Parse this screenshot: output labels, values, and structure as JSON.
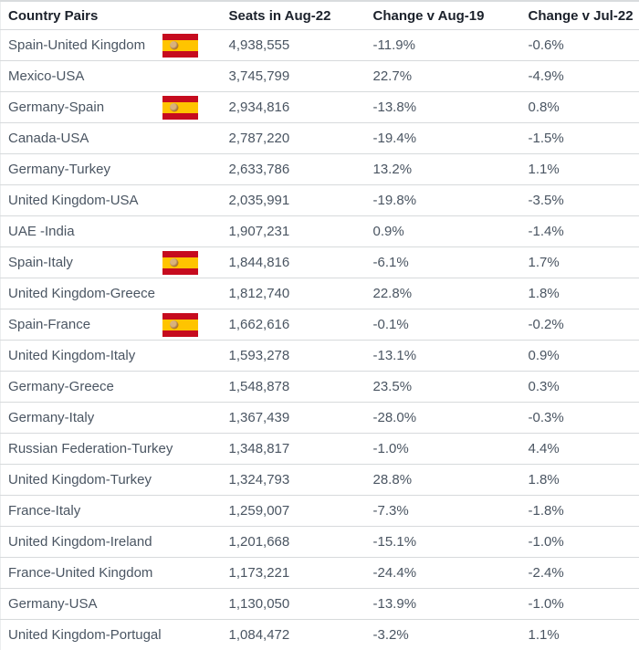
{
  "table": {
    "columns": [
      {
        "label": "Country Pairs"
      },
      {
        "label": "Seats in Aug-22"
      },
      {
        "label": "Change v Aug-19"
      },
      {
        "label": "Change v Jul-22"
      }
    ],
    "rows": [
      {
        "pair": "Spain-United Kingdom",
        "flag": "spain-flag",
        "seats": "4,938,555",
        "change_v_aug19": "-11.9%",
        "change_v_jul22": "-0.6%"
      },
      {
        "pair": "Mexico-USA",
        "flag": "",
        "seats": "3,745,799",
        "change_v_aug19": "22.7%",
        "change_v_jul22": "-4.9%"
      },
      {
        "pair": "Germany-Spain",
        "flag": "spain-flag",
        "seats": "2,934,816",
        "change_v_aug19": "-13.8%",
        "change_v_jul22": "0.8%"
      },
      {
        "pair": "Canada-USA",
        "flag": "",
        "seats": "2,787,220",
        "change_v_aug19": "-19.4%",
        "change_v_jul22": "-1.5%"
      },
      {
        "pair": "Germany-Turkey",
        "flag": "",
        "seats": "2,633,786",
        "change_v_aug19": "13.2%",
        "change_v_jul22": "1.1%"
      },
      {
        "pair": "United Kingdom-USA",
        "flag": "",
        "seats": "2,035,991",
        "change_v_aug19": "-19.8%",
        "change_v_jul22": "-3.5%"
      },
      {
        "pair": "UAE -India",
        "flag": "",
        "seats": "1,907,231",
        "change_v_aug19": "0.9%",
        "change_v_jul22": "-1.4%"
      },
      {
        "pair": "Spain-Italy",
        "flag": "spain-flag",
        "seats": "1,844,816",
        "change_v_aug19": "-6.1%",
        "change_v_jul22": "1.7%"
      },
      {
        "pair": "United Kingdom-Greece",
        "flag": "",
        "seats": "1,812,740",
        "change_v_aug19": "22.8%",
        "change_v_jul22": "1.8%"
      },
      {
        "pair": "Spain-France",
        "flag": "spain-flag",
        "seats": "1,662,616",
        "change_v_aug19": "-0.1%",
        "change_v_jul22": "-0.2%"
      },
      {
        "pair": "United Kingdom-Italy",
        "flag": "",
        "seats": "1,593,278",
        "change_v_aug19": "-13.1%",
        "change_v_jul22": "0.9%"
      },
      {
        "pair": "Germany-Greece",
        "flag": "",
        "seats": "1,548,878",
        "change_v_aug19": "23.5%",
        "change_v_jul22": "0.3%"
      },
      {
        "pair": "Germany-Italy",
        "flag": "",
        "seats": "1,367,439",
        "change_v_aug19": "-28.0%",
        "change_v_jul22": "-0.3%"
      },
      {
        "pair": "Russian Federation-Turkey",
        "flag": "",
        "seats": "1,348,817",
        "change_v_aug19": "-1.0%",
        "change_v_jul22": "4.4%"
      },
      {
        "pair": "United Kingdom-Turkey",
        "flag": "",
        "seats": "1,324,793",
        "change_v_aug19": "28.8%",
        "change_v_jul22": "1.8%"
      },
      {
        "pair": "France-Italy",
        "flag": "",
        "seats": "1,259,007",
        "change_v_aug19": "-7.3%",
        "change_v_jul22": "-1.8%"
      },
      {
        "pair": "United Kingdom-Ireland",
        "flag": "",
        "seats": "1,201,668",
        "change_v_aug19": "-15.1%",
        "change_v_jul22": "-1.0%"
      },
      {
        "pair": "France-United Kingdom",
        "flag": "",
        "seats": "1,173,221",
        "change_v_aug19": "-24.4%",
        "change_v_jul22": "-2.4%"
      },
      {
        "pair": "Germany-USA",
        "flag": "",
        "seats": "1,130,050",
        "change_v_aug19": "-13.9%",
        "change_v_jul22": "-1.0%"
      },
      {
        "pair": "United Kingdom-Portugal",
        "flag": "",
        "seats": "1,084,472",
        "change_v_aug19": "-3.2%",
        "change_v_jul22": "1.1%"
      }
    ]
  },
  "icons": {
    "spain_flag": "spain-flag-icon"
  },
  "colors": {
    "header_text": "#1b212b",
    "body_text": "#4a5562",
    "row_separator": "#d7dadc",
    "flag_red": "#c60b1e",
    "flag_yellow": "#ffc400"
  }
}
